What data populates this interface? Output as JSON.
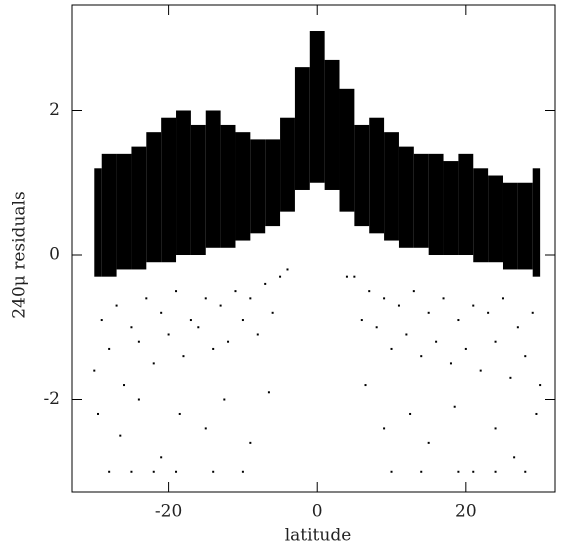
{
  "chart_data": {
    "type": "scatter",
    "xlabel": "latitude",
    "ylabel": "240μ residuals",
    "xlim": [
      -33,
      32
    ],
    "ylim": [
      -3.28,
      3.46
    ],
    "xticks": [
      -20,
      0,
      20
    ],
    "yticks": [
      -2,
      0,
      2
    ],
    "color": "#000000",
    "envelope": {
      "x": [
        -30,
        -28,
        -26,
        -24,
        -22,
        -20,
        -18,
        -16,
        -14,
        -12,
        -10,
        -8,
        -6,
        -4,
        -2,
        0,
        2,
        4,
        6,
        8,
        10,
        12,
        14,
        16,
        18,
        20,
        22,
        24,
        26,
        28,
        30
      ],
      "upper": [
        1.2,
        1.4,
        1.4,
        1.5,
        1.7,
        1.9,
        2.0,
        1.8,
        2.0,
        1.8,
        1.7,
        1.6,
        1.6,
        1.9,
        2.6,
        3.1,
        2.7,
        2.3,
        1.8,
        1.9,
        1.7,
        1.5,
        1.4,
        1.4,
        1.3,
        1.4,
        1.2,
        1.1,
        1.0,
        1.0,
        1.2
      ],
      "lower": [
        -0.3,
        -0.3,
        -0.2,
        -0.2,
        -0.1,
        -0.1,
        0,
        0,
        0.1,
        0.1,
        0.2,
        0.3,
        0.4,
        0.6,
        0.9,
        1.0,
        0.9,
        0.6,
        0.4,
        0.3,
        0.2,
        0.1,
        0.1,
        0,
        0,
        0,
        -0.1,
        -0.1,
        -0.2,
        -0.2,
        -0.3
      ]
    },
    "points": {
      "x": [
        -29,
        -27,
        -25,
        -23,
        -21,
        -19,
        -17,
        -15,
        -13,
        -11,
        -9,
        -7,
        -5,
        5,
        7,
        9,
        11,
        13,
        15,
        17,
        19,
        21,
        23,
        25,
        27,
        29,
        -30,
        -28,
        -26,
        -24,
        -22,
        -20,
        -18,
        -16,
        -14,
        -12,
        -10,
        -8,
        -6,
        -4,
        4,
        6,
        8,
        10,
        12,
        14,
        16,
        18,
        20,
        22,
        24,
        26,
        28,
        30,
        -29.5,
        -26.5,
        -24,
        -21,
        -18.5,
        -15,
        -12.5,
        -9,
        -6.5,
        6.5,
        9,
        12.5,
        15,
        18.5,
        21,
        24,
        26.5,
        29.5,
        -28,
        -25,
        -22,
        -19,
        -14,
        -10,
        10,
        14,
        19,
        24,
        28
      ],
      "y": [
        -0.9,
        -0.7,
        -1.0,
        -0.6,
        -0.8,
        -0.5,
        -0.9,
        -0.6,
        -0.7,
        -0.5,
        -0.6,
        -0.4,
        -0.3,
        -0.3,
        -0.5,
        -0.6,
        -0.7,
        -0.5,
        -0.8,
        -0.6,
        -0.9,
        -0.7,
        -0.8,
        -0.6,
        -1.0,
        -0.8,
        -1.6,
        -1.3,
        -1.8,
        -1.2,
        -1.5,
        -1.1,
        -1.4,
        -1.0,
        -1.3,
        -1.2,
        -0.9,
        -1.1,
        -0.8,
        -0.2,
        -0.3,
        -0.9,
        -1.0,
        -1.3,
        -1.1,
        -1.4,
        -1.2,
        -1.5,
        -1.3,
        -1.6,
        -1.2,
        -1.7,
        -1.4,
        -1.8,
        -2.2,
        -2.5,
        -2.0,
        -2.8,
        -2.2,
        -2.4,
        -2.0,
        -2.6,
        -1.9,
        -1.8,
        -2.4,
        -2.2,
        -2.6,
        -2.1,
        -3.0,
        -2.4,
        -2.8,
        -2.2,
        -3.0,
        -3.0,
        -3.0,
        -3.0,
        -3.0,
        -3.0,
        -3.0,
        -3.0,
        -3.0,
        -3.0,
        -3.0
      ]
    }
  }
}
